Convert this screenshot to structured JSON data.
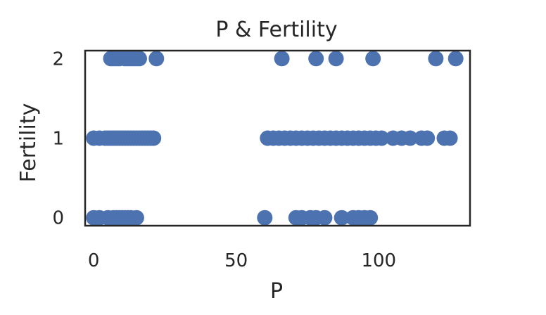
{
  "chart_data": {
    "type": "scatter",
    "title": "P & Fertility",
    "xlabel": "P",
    "ylabel": "Fertility",
    "xlim": [
      -3,
      132
    ],
    "ylim": [
      -0.1,
      2.1
    ],
    "xticks": [
      0,
      50,
      100
    ],
    "yticks": [
      0,
      1,
      2
    ],
    "grid": false,
    "marker_color": "#4c72b0",
    "frame_color": "#262626",
    "points": [
      {
        "x": 6,
        "y": 2
      },
      {
        "x": 7,
        "y": 2
      },
      {
        "x": 8,
        "y": 2
      },
      {
        "x": 9,
        "y": 2
      },
      {
        "x": 11,
        "y": 2
      },
      {
        "x": 12,
        "y": 2
      },
      {
        "x": 13,
        "y": 2
      },
      {
        "x": 14,
        "y": 2
      },
      {
        "x": 15,
        "y": 2
      },
      {
        "x": 16,
        "y": 2
      },
      {
        "x": 22,
        "y": 2
      },
      {
        "x": 66,
        "y": 2
      },
      {
        "x": 78,
        "y": 2
      },
      {
        "x": 85,
        "y": 2
      },
      {
        "x": 98,
        "y": 2
      },
      {
        "x": 120,
        "y": 2
      },
      {
        "x": 127,
        "y": 2
      },
      {
        "x": 0,
        "y": 1
      },
      {
        "x": 2,
        "y": 1
      },
      {
        "x": 4,
        "y": 1
      },
      {
        "x": 5,
        "y": 1
      },
      {
        "x": 6,
        "y": 1
      },
      {
        "x": 7,
        "y": 1
      },
      {
        "x": 8,
        "y": 1
      },
      {
        "x": 9,
        "y": 1
      },
      {
        "x": 10,
        "y": 1
      },
      {
        "x": 11,
        "y": 1
      },
      {
        "x": 12,
        "y": 1
      },
      {
        "x": 13,
        "y": 1
      },
      {
        "x": 14,
        "y": 1
      },
      {
        "x": 15,
        "y": 1
      },
      {
        "x": 16,
        "y": 1
      },
      {
        "x": 17,
        "y": 1
      },
      {
        "x": 18,
        "y": 1
      },
      {
        "x": 19,
        "y": 1
      },
      {
        "x": 20,
        "y": 1
      },
      {
        "x": 21,
        "y": 1
      },
      {
        "x": 61,
        "y": 1
      },
      {
        "x": 63,
        "y": 1
      },
      {
        "x": 65,
        "y": 1
      },
      {
        "x": 67,
        "y": 1
      },
      {
        "x": 69,
        "y": 1
      },
      {
        "x": 71,
        "y": 1
      },
      {
        "x": 73,
        "y": 1
      },
      {
        "x": 75,
        "y": 1
      },
      {
        "x": 77,
        "y": 1
      },
      {
        "x": 79,
        "y": 1
      },
      {
        "x": 81,
        "y": 1
      },
      {
        "x": 83,
        "y": 1
      },
      {
        "x": 85,
        "y": 1
      },
      {
        "x": 87,
        "y": 1
      },
      {
        "x": 89,
        "y": 1
      },
      {
        "x": 91,
        "y": 1
      },
      {
        "x": 93,
        "y": 1
      },
      {
        "x": 95,
        "y": 1
      },
      {
        "x": 97,
        "y": 1
      },
      {
        "x": 99,
        "y": 1
      },
      {
        "x": 101,
        "y": 1
      },
      {
        "x": 105,
        "y": 1
      },
      {
        "x": 108,
        "y": 1
      },
      {
        "x": 111,
        "y": 1
      },
      {
        "x": 115,
        "y": 1
      },
      {
        "x": 117,
        "y": 1
      },
      {
        "x": 123,
        "y": 1
      },
      {
        "x": 125,
        "y": 1
      },
      {
        "x": 0,
        "y": 0
      },
      {
        "x": 2,
        "y": 0
      },
      {
        "x": 5,
        "y": 0
      },
      {
        "x": 7,
        "y": 0
      },
      {
        "x": 8,
        "y": 0
      },
      {
        "x": 9,
        "y": 0
      },
      {
        "x": 10,
        "y": 0
      },
      {
        "x": 11,
        "y": 0
      },
      {
        "x": 12,
        "y": 0
      },
      {
        "x": 13,
        "y": 0
      },
      {
        "x": 15,
        "y": 0
      },
      {
        "x": 60,
        "y": 0
      },
      {
        "x": 71,
        "y": 0
      },
      {
        "x": 73,
        "y": 0
      },
      {
        "x": 76,
        "y": 0
      },
      {
        "x": 78,
        "y": 0
      },
      {
        "x": 81,
        "y": 0
      },
      {
        "x": 87,
        "y": 0
      },
      {
        "x": 91,
        "y": 0
      },
      {
        "x": 93,
        "y": 0
      },
      {
        "x": 95,
        "y": 0
      },
      {
        "x": 97,
        "y": 0
      }
    ]
  }
}
